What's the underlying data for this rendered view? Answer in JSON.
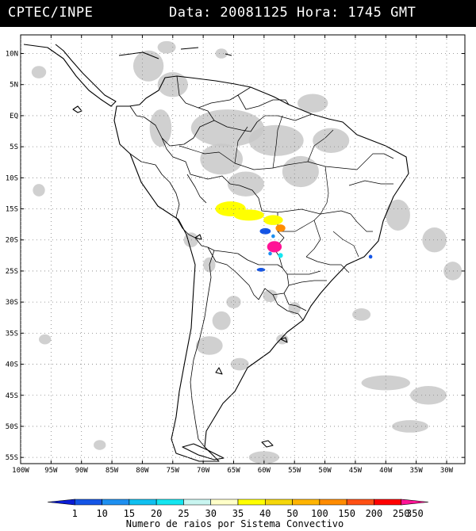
{
  "header": {
    "source": "CPTEC/INPE",
    "datetime": "Data: 20081125 Hora: 1745 GMT"
  },
  "map": {
    "lon_range": [
      -100,
      -27
    ],
    "lat_range": [
      -56,
      13
    ],
    "lat_ticks": [
      {
        "lat": 10,
        "label": "10N"
      },
      {
        "lat": 5,
        "label": "5N"
      },
      {
        "lat": 0,
        "label": "EQ"
      },
      {
        "lat": -5,
        "label": "5S"
      },
      {
        "lat": -10,
        "label": "10S"
      },
      {
        "lat": -15,
        "label": "15S"
      },
      {
        "lat": -20,
        "label": "20S"
      },
      {
        "lat": -25,
        "label": "25S"
      },
      {
        "lat": -30,
        "label": "30S"
      },
      {
        "lat": -35,
        "label": "35S"
      },
      {
        "lat": -40,
        "label": "40S"
      },
      {
        "lat": -45,
        "label": "45S"
      },
      {
        "lat": -50,
        "label": "50S"
      },
      {
        "lat": -55,
        "label": "55S"
      }
    ],
    "lon_ticks": [
      {
        "lon": -100,
        "label": "100W"
      },
      {
        "lon": -95,
        "label": "95W"
      },
      {
        "lon": -90,
        "label": "90W"
      },
      {
        "lon": -85,
        "label": "85W"
      },
      {
        "lon": -80,
        "label": "80W"
      },
      {
        "lon": -75,
        "label": "75W"
      },
      {
        "lon": -70,
        "label": "70W"
      },
      {
        "lon": -65,
        "label": "65W"
      },
      {
        "lon": -60,
        "label": "60W"
      },
      {
        "lon": -55,
        "label": "55W"
      },
      {
        "lon": -50,
        "label": "50W"
      },
      {
        "lon": -45,
        "label": "45W"
      },
      {
        "lon": -40,
        "label": "40W"
      },
      {
        "lon": -35,
        "label": "35W"
      },
      {
        "lon": -30,
        "label": "30W"
      }
    ],
    "cloud_color": "#c8c8c8",
    "clouds": [
      {
        "lon": -79,
        "lat": 8,
        "rx": 2.5,
        "ry": 2.5
      },
      {
        "lon": -97,
        "lat": 7,
        "rx": 1.2,
        "ry": 1
      },
      {
        "lon": -75,
        "lat": 5,
        "rx": 2.5,
        "ry": 2
      },
      {
        "lon": -76,
        "lat": 11,
        "rx": 1.5,
        "ry": 1
      },
      {
        "lon": -67,
        "lat": 10,
        "rx": 1,
        "ry": 0.8
      },
      {
        "lon": -77,
        "lat": -2,
        "rx": 1.8,
        "ry": 3
      },
      {
        "lon": -66,
        "lat": -2,
        "rx": 6,
        "ry": 3
      },
      {
        "lon": -67,
        "lat": -7,
        "rx": 3.5,
        "ry": 2.5
      },
      {
        "lon": -58,
        "lat": -4,
        "rx": 4.5,
        "ry": 2.5
      },
      {
        "lon": -52,
        "lat": 2,
        "rx": 2.5,
        "ry": 1.5
      },
      {
        "lon": -49,
        "lat": -4,
        "rx": 3,
        "ry": 2
      },
      {
        "lon": -54,
        "lat": -9,
        "rx": 3,
        "ry": 2.5
      },
      {
        "lon": -63,
        "lat": -11,
        "rx": 3,
        "ry": 2
      },
      {
        "lon": -38,
        "lat": -16,
        "rx": 2,
        "ry": 2.5
      },
      {
        "lon": -32,
        "lat": -20,
        "rx": 2,
        "ry": 2
      },
      {
        "lon": -29,
        "lat": -25,
        "rx": 1.5,
        "ry": 1.5
      },
      {
        "lon": -72,
        "lat": -20,
        "rx": 1.2,
        "ry": 1.2
      },
      {
        "lon": -69,
        "lat": -24,
        "rx": 1,
        "ry": 1.2
      },
      {
        "lon": -67,
        "lat": -33,
        "rx": 1.5,
        "ry": 1.5
      },
      {
        "lon": -65,
        "lat": -30,
        "rx": 1.2,
        "ry": 1
      },
      {
        "lon": -59,
        "lat": -29,
        "rx": 1.2,
        "ry": 1
      },
      {
        "lon": -55,
        "lat": -31,
        "rx": 1,
        "ry": 1
      },
      {
        "lon": -64,
        "lat": -40,
        "rx": 1.5,
        "ry": 1
      },
      {
        "lon": -69,
        "lat": -37,
        "rx": 2.2,
        "ry": 1.5
      },
      {
        "lon": -57,
        "lat": -36,
        "rx": 1,
        "ry": 0.8
      },
      {
        "lon": -44,
        "lat": -32,
        "rx": 1.5,
        "ry": 1
      },
      {
        "lon": -40,
        "lat": -43,
        "rx": 4,
        "ry": 1.2
      },
      {
        "lon": -33,
        "lat": -45,
        "rx": 3,
        "ry": 1.5
      },
      {
        "lon": -36,
        "lat": -50,
        "rx": 3,
        "ry": 1
      },
      {
        "lon": -60,
        "lat": -55,
        "rx": 2.5,
        "ry": 1
      },
      {
        "lon": -87,
        "lat": -53,
        "rx": 1,
        "ry": 0.8
      },
      {
        "lon": -97,
        "lat": -12,
        "rx": 1,
        "ry": 1
      },
      {
        "lon": -96,
        "lat": -36,
        "rx": 1,
        "ry": 0.8
      }
    ],
    "lightning": [
      {
        "lon": -65.5,
        "lat": -15,
        "rx": 2.5,
        "ry": 1.2,
        "value": 40
      },
      {
        "lon": -62.5,
        "lat": -16,
        "rx": 2.5,
        "ry": 0.9,
        "value": 40
      },
      {
        "lon": -58.5,
        "lat": -16.8,
        "rx": 1.6,
        "ry": 0.8,
        "value": 40
      },
      {
        "lon": -57.3,
        "lat": -18.1,
        "rx": 0.8,
        "ry": 0.6,
        "value": 150
      },
      {
        "lon": -59.8,
        "lat": -18.6,
        "rx": 0.9,
        "ry": 0.5,
        "value": 10
      },
      {
        "lon": -58.5,
        "lat": -19.4,
        "rx": 0.3,
        "ry": 0.3,
        "value": 15
      },
      {
        "lon": -58.3,
        "lat": -21.1,
        "rx": 1.2,
        "ry": 0.9,
        "value": 350
      },
      {
        "lon": -57.3,
        "lat": -22.5,
        "rx": 0.4,
        "ry": 0.4,
        "value": 25
      },
      {
        "lon": -59,
        "lat": -22.2,
        "rx": 0.3,
        "ry": 0.3,
        "value": 15
      },
      {
        "lon": -60.5,
        "lat": -24.8,
        "rx": 0.7,
        "ry": 0.3,
        "value": 10
      },
      {
        "lon": -42.5,
        "lat": -22.7,
        "rx": 0.3,
        "ry": 0.3,
        "value": 10
      }
    ]
  },
  "legend": {
    "values": [
      "1",
      "10",
      "15",
      "20",
      "25",
      "30",
      "35",
      "40",
      "50",
      "100",
      "150",
      "200",
      "250",
      "350"
    ],
    "colors": [
      "#0a1cd6",
      "#1455e6",
      "#1e90f0",
      "#10c0f0",
      "#14e6f0",
      "#c8f5f0",
      "#ffffc8",
      "#ffff00",
      "#f5d70a",
      "#ffb400",
      "#ff8c00",
      "#ff5014",
      "#ff0000",
      "#ff1496"
    ],
    "caption": "Numero de raios por Sistema Convectivo"
  }
}
